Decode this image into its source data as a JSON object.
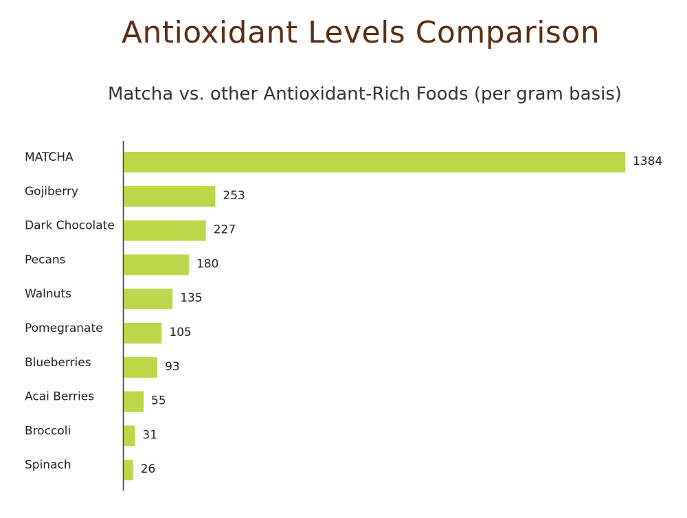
{
  "colors": {
    "bar": "#bcd84a",
    "title": "#5a2e14",
    "axis": "#333333"
  },
  "chart_data": {
    "type": "bar",
    "orientation": "horizontal",
    "title": "Antioxidant Levels Comparison",
    "subtitle": "Matcha vs. other Antioxidant-Rich Foods (per gram basis)",
    "categories": [
      "MATCHA",
      "Gojiberry",
      "Dark Chocolate",
      "Pecans",
      "Walnuts",
      "Pomegranate",
      "Blueberries",
      "Acai Berries",
      "Broccoli",
      "Spinach"
    ],
    "values": [
      1384,
      253,
      227,
      180,
      135,
      105,
      93,
      55,
      31,
      26
    ],
    "data_labels": [
      "1384",
      "253",
      "227",
      "180",
      "135",
      "105",
      "93",
      "55",
      "31",
      "26"
    ],
    "grid": false,
    "legend": "none",
    "xlim": [
      0,
      1384
    ]
  }
}
